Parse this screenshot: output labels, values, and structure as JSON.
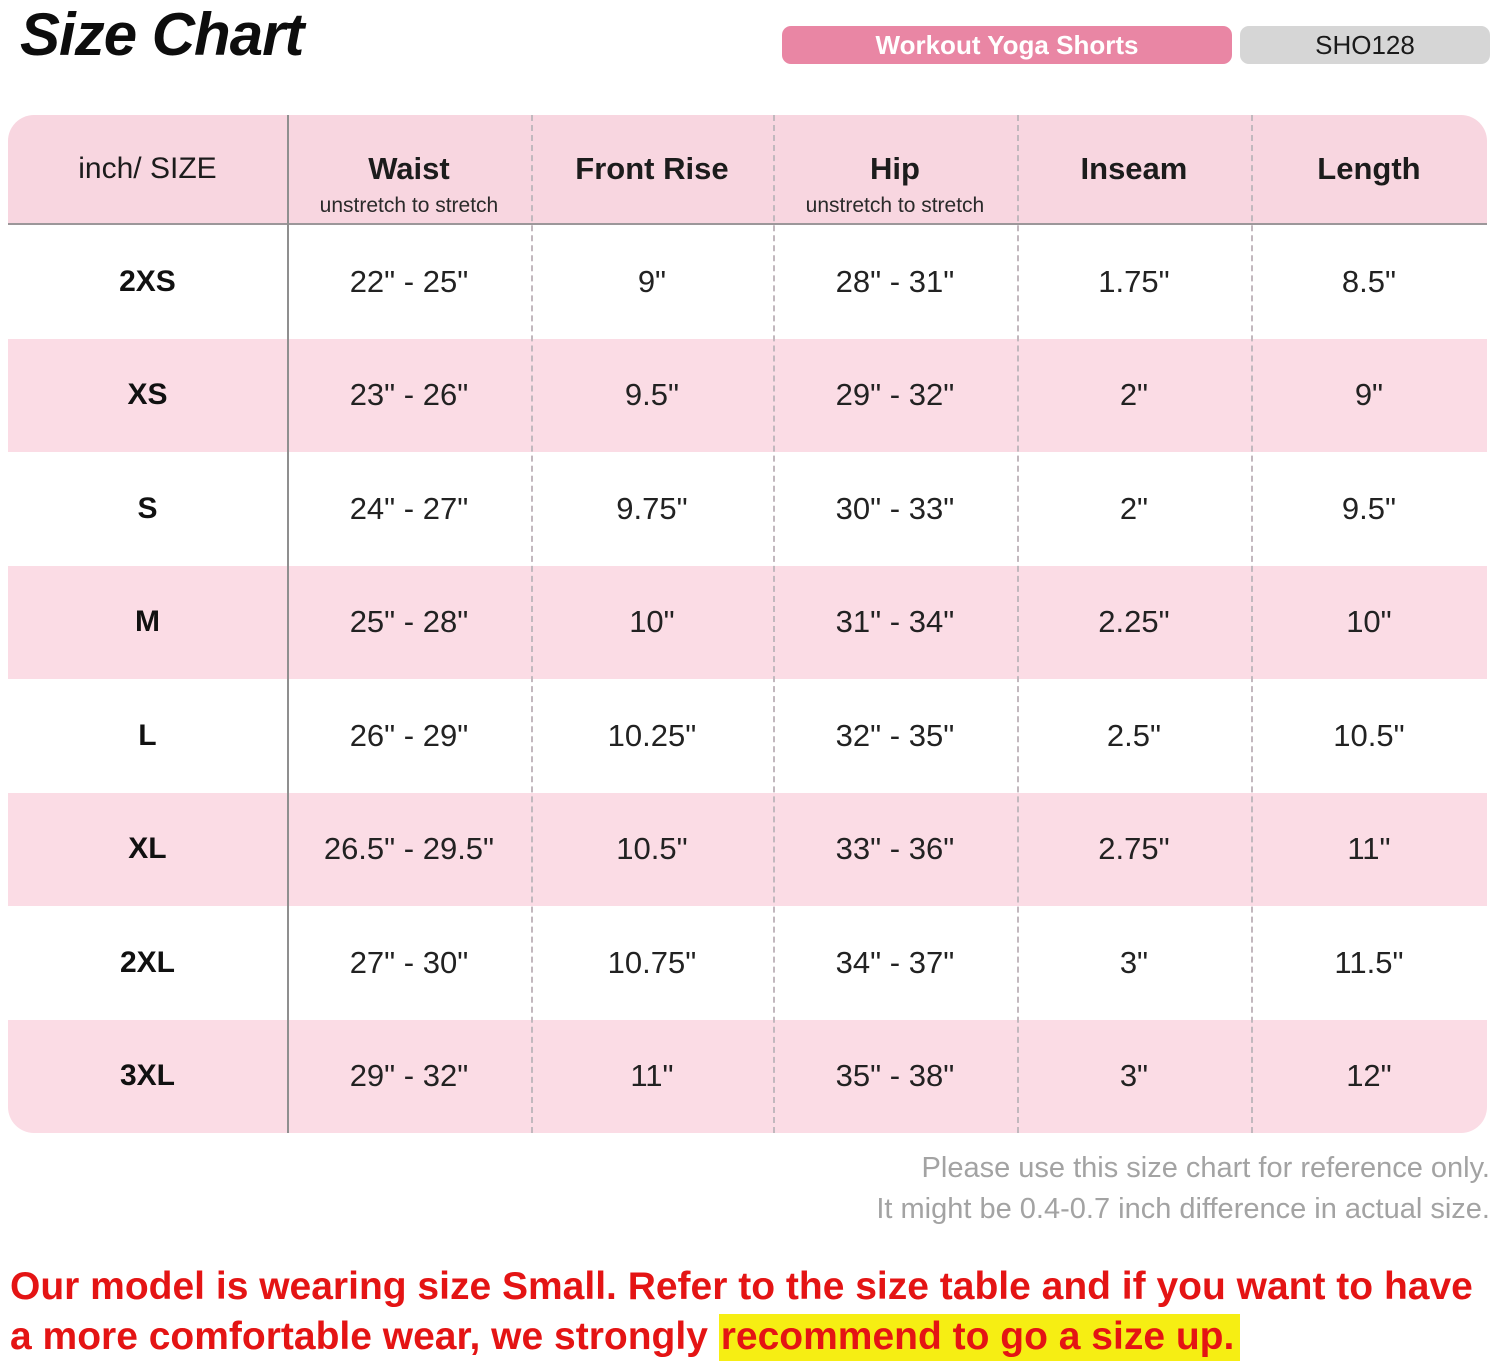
{
  "page": {
    "title": "Size Chart",
    "product_badge": "Workout Yoga Shorts",
    "sku_badge": "SHO128"
  },
  "table": {
    "corner_header": "inch/ SIZE",
    "columns": [
      {
        "label": "Waist",
        "sub": "unstretch to stretch"
      },
      {
        "label": "Front Rise",
        "sub": ""
      },
      {
        "label": "Hip",
        "sub": "unstretch to stretch"
      },
      {
        "label": "Inseam",
        "sub": ""
      },
      {
        "label": "Length",
        "sub": ""
      }
    ],
    "rows": [
      {
        "size": "2XS",
        "values": [
          "22\" - 25\"",
          "9\"",
          "28\" - 31\"",
          "1.75\"",
          "8.5\""
        ]
      },
      {
        "size": "XS",
        "values": [
          "23\" - 26\"",
          "9.5\"",
          "29\" - 32\"",
          "2\"",
          "9\""
        ]
      },
      {
        "size": "S",
        "values": [
          "24\" - 27\"",
          "9.75\"",
          "30\" - 33\"",
          "2\"",
          "9.5\""
        ]
      },
      {
        "size": "M",
        "values": [
          "25\" - 28\"",
          "10\"",
          "31\" - 34\"",
          "2.25\"",
          "10\""
        ]
      },
      {
        "size": "L",
        "values": [
          "26\" - 29\"",
          "10.25\"",
          "32\" - 35\"",
          "2.5\"",
          "10.5\""
        ]
      },
      {
        "size": "XL",
        "values": [
          "26.5\" - 29.5\"",
          "10.5\"",
          "33\" - 36\"",
          "2.75\"",
          "11\""
        ]
      },
      {
        "size": "2XL",
        "values": [
          "27\" - 30\"",
          "10.75\"",
          "34\" - 37\"",
          "3\"",
          "11.5\""
        ]
      },
      {
        "size": "3XL",
        "values": [
          "29\" - 32\"",
          "11\"",
          "35\" - 38\"",
          "3\"",
          "12\""
        ]
      }
    ]
  },
  "note": {
    "line1": "Please use this size chart for reference only.",
    "line2": "It might be 0.4-0.7 inch difference in actual size."
  },
  "disclaimer": {
    "line1": "Our model is wearing size Small. Refer to the size table and if you want to have",
    "line2_pre": "a more comfortable wear, we strongly ",
    "line2_highlight": "recommend to go a size up."
  },
  "colors": {
    "badge_pink": "#e986a4",
    "badge_gray": "#d6d6d6",
    "header_pink": "#f8d6e0",
    "row_pink": "#fbdce5",
    "red_text": "#e41414",
    "highlight_yellow": "#f6ee13",
    "note_gray": "#a3a3a3"
  }
}
